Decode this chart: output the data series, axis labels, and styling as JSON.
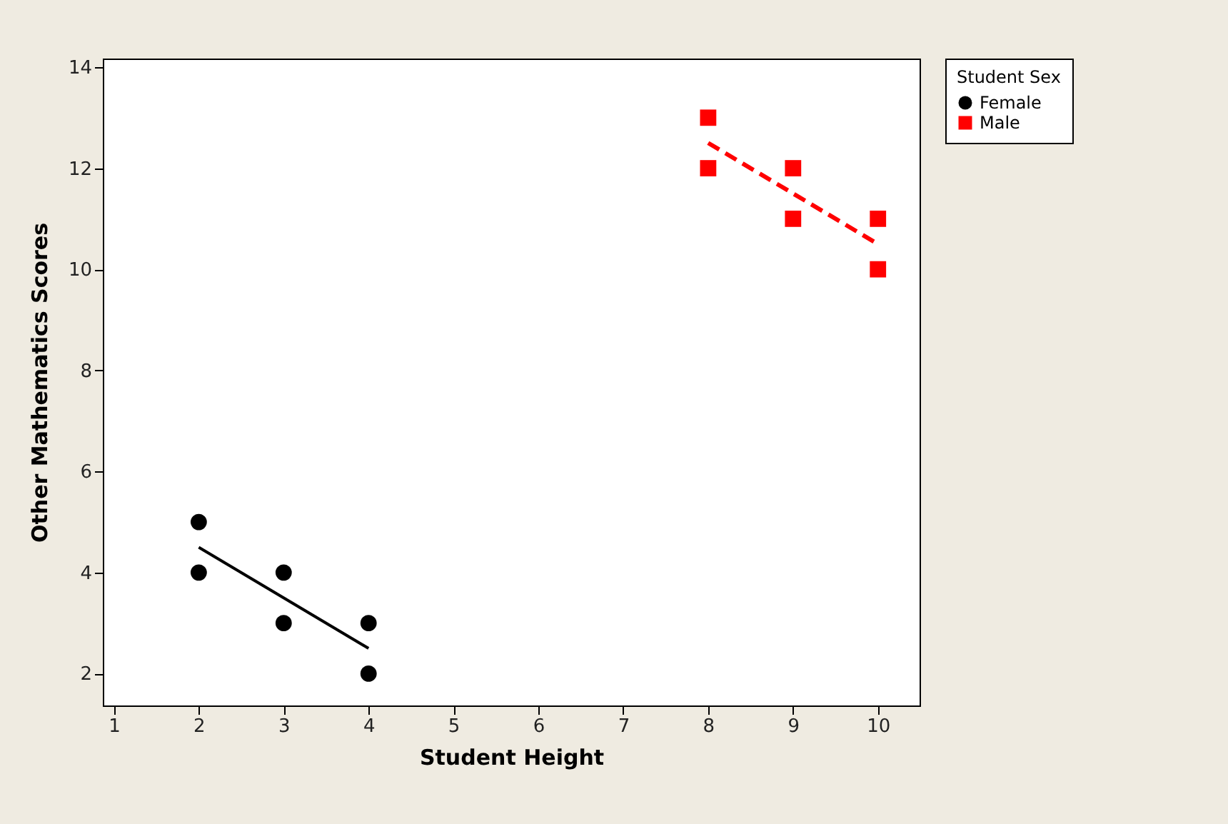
{
  "chart_data": {
    "type": "scatter",
    "xlabel": "Student Height",
    "ylabel": "Other Mathematics Scores",
    "legend_title": "Student Sex",
    "legend": "right",
    "xlim": [
      0.87,
      10.49
    ],
    "xticks": [
      1,
      2,
      3,
      4,
      5,
      6,
      7,
      8,
      9,
      10
    ],
    "ylim": [
      1.37,
      14.17
    ],
    "yticks": [
      2,
      4,
      6,
      8,
      10,
      12,
      14
    ],
    "grid": false,
    "series": [
      {
        "name": "Female",
        "type": "scatter",
        "marker": "circle",
        "color": "#000000",
        "x": [
          2,
          2,
          3,
          3,
          4,
          4
        ],
        "values": [
          5,
          4,
          4,
          3,
          3,
          2
        ]
      },
      {
        "name": "Male",
        "type": "scatter",
        "marker": "square",
        "color": "#ff0000",
        "x": [
          8,
          8,
          9,
          9,
          10,
          10
        ],
        "values": [
          13,
          12,
          12,
          11,
          11,
          10
        ]
      },
      {
        "type": "line",
        "line_style": "solid",
        "color": "#000000",
        "x": [
          2,
          4
        ],
        "values": [
          4.5,
          2.5
        ]
      },
      {
        "type": "line",
        "line_style": "dashed",
        "color": "#ff0000",
        "x": [
          8,
          10
        ],
        "values": [
          12.5,
          10.5
        ]
      }
    ]
  }
}
